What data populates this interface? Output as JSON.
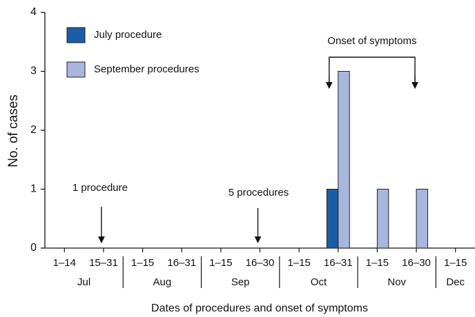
{
  "chart_data": {
    "type": "bar",
    "title_y": "No. of cases",
    "title_x": "Dates of procedures and onset of symptoms",
    "categories": [
      "1–14",
      "15–31",
      "1–15",
      "16–31",
      "1–15",
      "16–30",
      "1–15",
      "16–31",
      "1–15",
      "16–30",
      "1–15"
    ],
    "month_groups": [
      {
        "label": "Jul",
        "count": 2
      },
      {
        "label": "Aug",
        "count": 2
      },
      {
        "label": "Sep",
        "count": 2
      },
      {
        "label": "Oct",
        "count": 2
      },
      {
        "label": "Nov",
        "count": 2
      },
      {
        "label": "Dec",
        "count": 1
      }
    ],
    "series": [
      {
        "name": "July procedure",
        "color": "#1b5ca6",
        "values": [
          0,
          0,
          0,
          0,
          0,
          0,
          0,
          1,
          0,
          0,
          0
        ]
      },
      {
        "name": "September procedures",
        "color": "#a8b5dc",
        "values": [
          0,
          0,
          0,
          0,
          0,
          0,
          0,
          3,
          1,
          1,
          0
        ]
      }
    ],
    "ylim": [
      0,
      4
    ],
    "yticks": [
      0,
      1,
      2,
      3,
      4
    ],
    "annotations": [
      "1 procedure",
      "5 procedures",
      "Onset of symptoms"
    ]
  }
}
